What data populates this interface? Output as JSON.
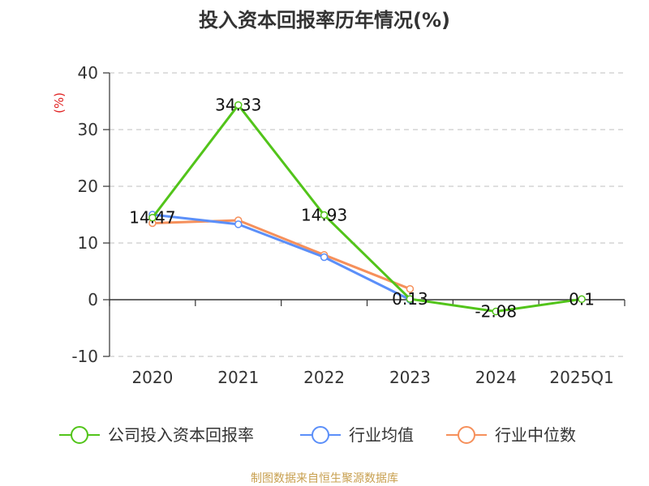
{
  "chart_data": {
    "type": "line",
    "title": "投入资本回报率历年情况(%)",
    "ylabel": "(%)",
    "xlabel": "",
    "categories": [
      "2020",
      "2021",
      "2022",
      "2023",
      "2024",
      "2025Q1"
    ],
    "ylim": [
      -10,
      40
    ],
    "yticks": [
      -10,
      0,
      10,
      20,
      30,
      40
    ],
    "grid": true,
    "legend_position": "bottom",
    "series": [
      {
        "name": "公司投入资本回报率",
        "color": "#52c41a",
        "values": [
          14.47,
          34.33,
          14.93,
          0.13,
          -2.08,
          0.1
        ],
        "labels": [
          "14.47",
          "34.33",
          "14.93",
          "0.13",
          "-2.08",
          "0.1"
        ]
      },
      {
        "name": "行业均值",
        "color": "#5b8ff9",
        "values": [
          15.0,
          13.3,
          7.5,
          0.0,
          null,
          null
        ]
      },
      {
        "name": "行业中位数",
        "color": "#f6905b",
        "values": [
          13.5,
          14.0,
          7.9,
          1.9,
          null,
          null
        ]
      }
    ]
  },
  "colors": {
    "ylabel": "#e02020",
    "source": "#c8a050",
    "grid": "#cccccc",
    "axis": "#333333"
  },
  "source_text": "制图数据来自恒生聚源数据库"
}
